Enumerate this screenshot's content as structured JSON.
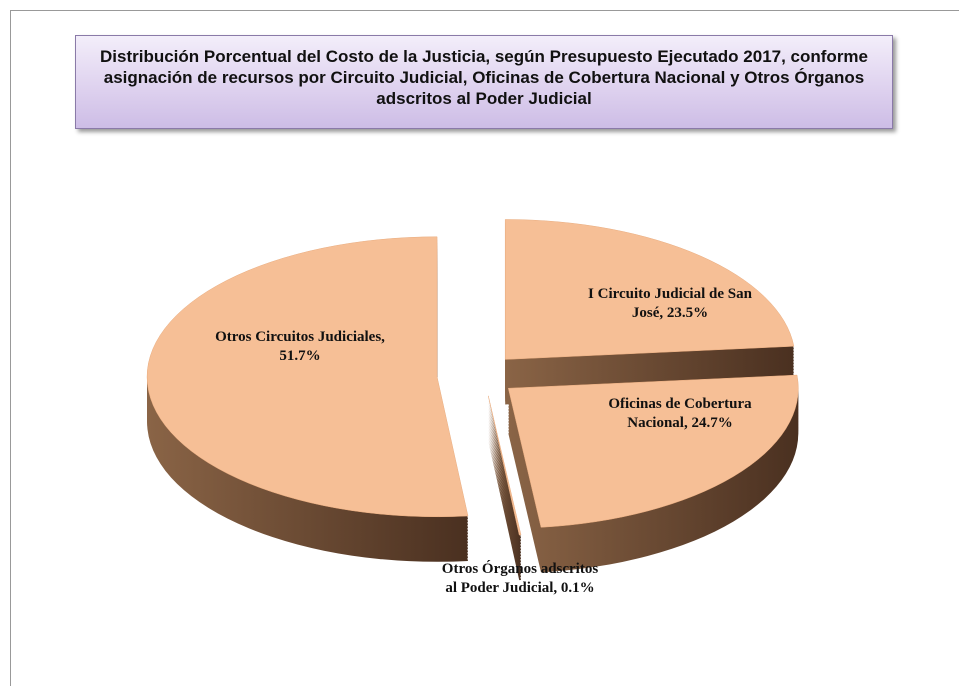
{
  "chart_data": {
    "type": "pie",
    "title": "Distribución Porcentual del Costo de la Justicia, según Presupuesto Ejecutado 2017, conforme asignación de recursos por Circuito Judicial, Oficinas de Cobertura Nacional  y  Otros Órganos adscritos al Poder Judicial",
    "values": [
      23.5,
      24.7,
      0.1,
      51.7
    ],
    "value_labels": [
      "I Circuito Judicial de San José, 23.5%",
      "Oficinas de Cobertura Nacional, 24.7%",
      "Otros Órganos adscritos al Poder Judicial, 0.1%",
      "Otros Circuitos Judiciales, 51.7%"
    ],
    "color": "#f6bf96"
  }
}
